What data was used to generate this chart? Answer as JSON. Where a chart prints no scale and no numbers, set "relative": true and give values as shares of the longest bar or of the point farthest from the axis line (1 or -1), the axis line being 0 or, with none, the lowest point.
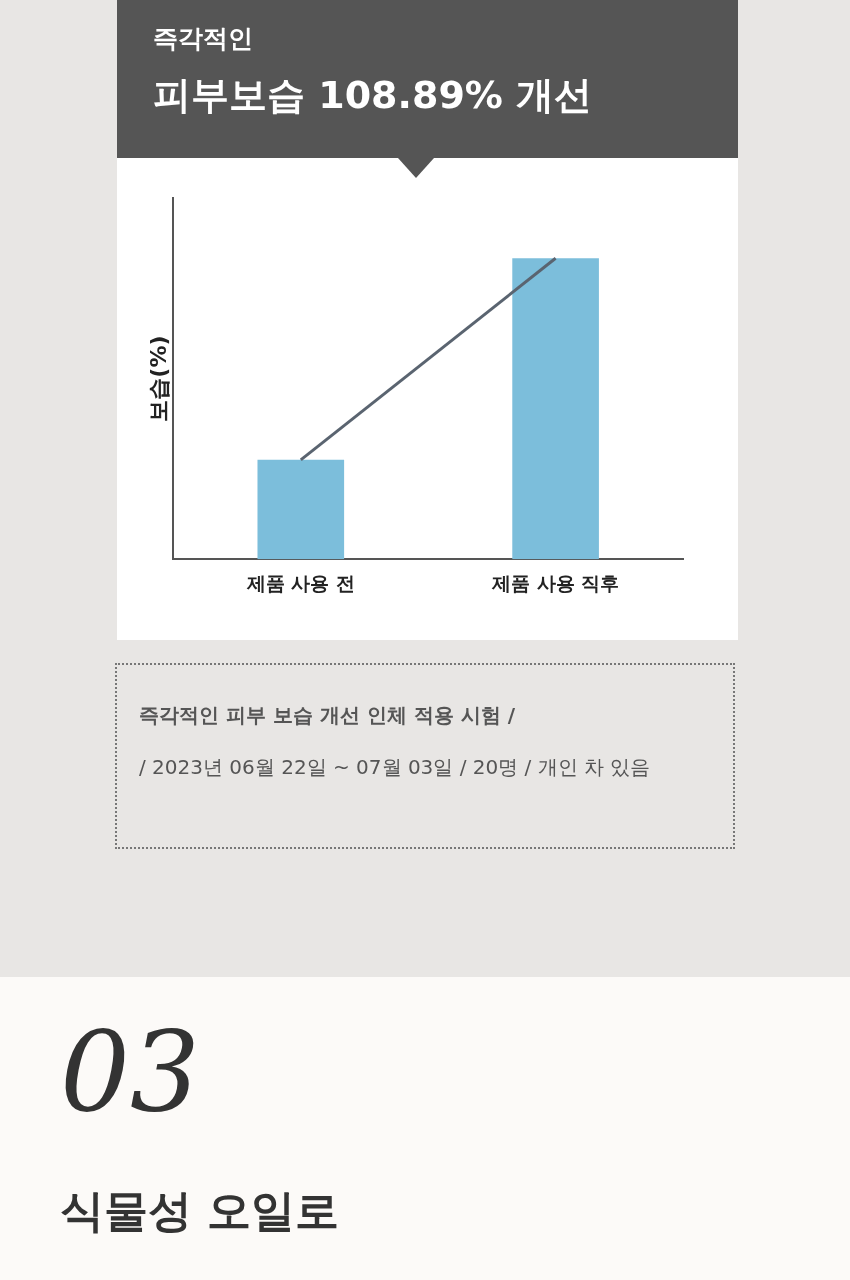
{
  "chart_data": {
    "type": "bar",
    "title": "즉각적인",
    "subtitle": "피부보습 108.89% 개선",
    "ylabel": "보습(%)",
    "categories": [
      "제품 사용 전",
      "제품 사용 직후"
    ],
    "relative": true,
    "grid": false,
    "legend": false,
    "series": [
      {
        "color": "#7cbedb",
        "values": [
          0.33,
          1
        ]
      },
      {
        "type": "line",
        "color": "#5a6470",
        "values": [
          0.33,
          1
        ],
        "marker": "none"
      }
    ],
    "annotations": [
      "즉각적인 피부 보습 개선 인체 적용 시험 /",
      " / 2023년 06월 22일 ~ 07월 03일 / 20명 / 개인 차 있음",
      "03",
      "식물성 오일로"
    ]
  }
}
